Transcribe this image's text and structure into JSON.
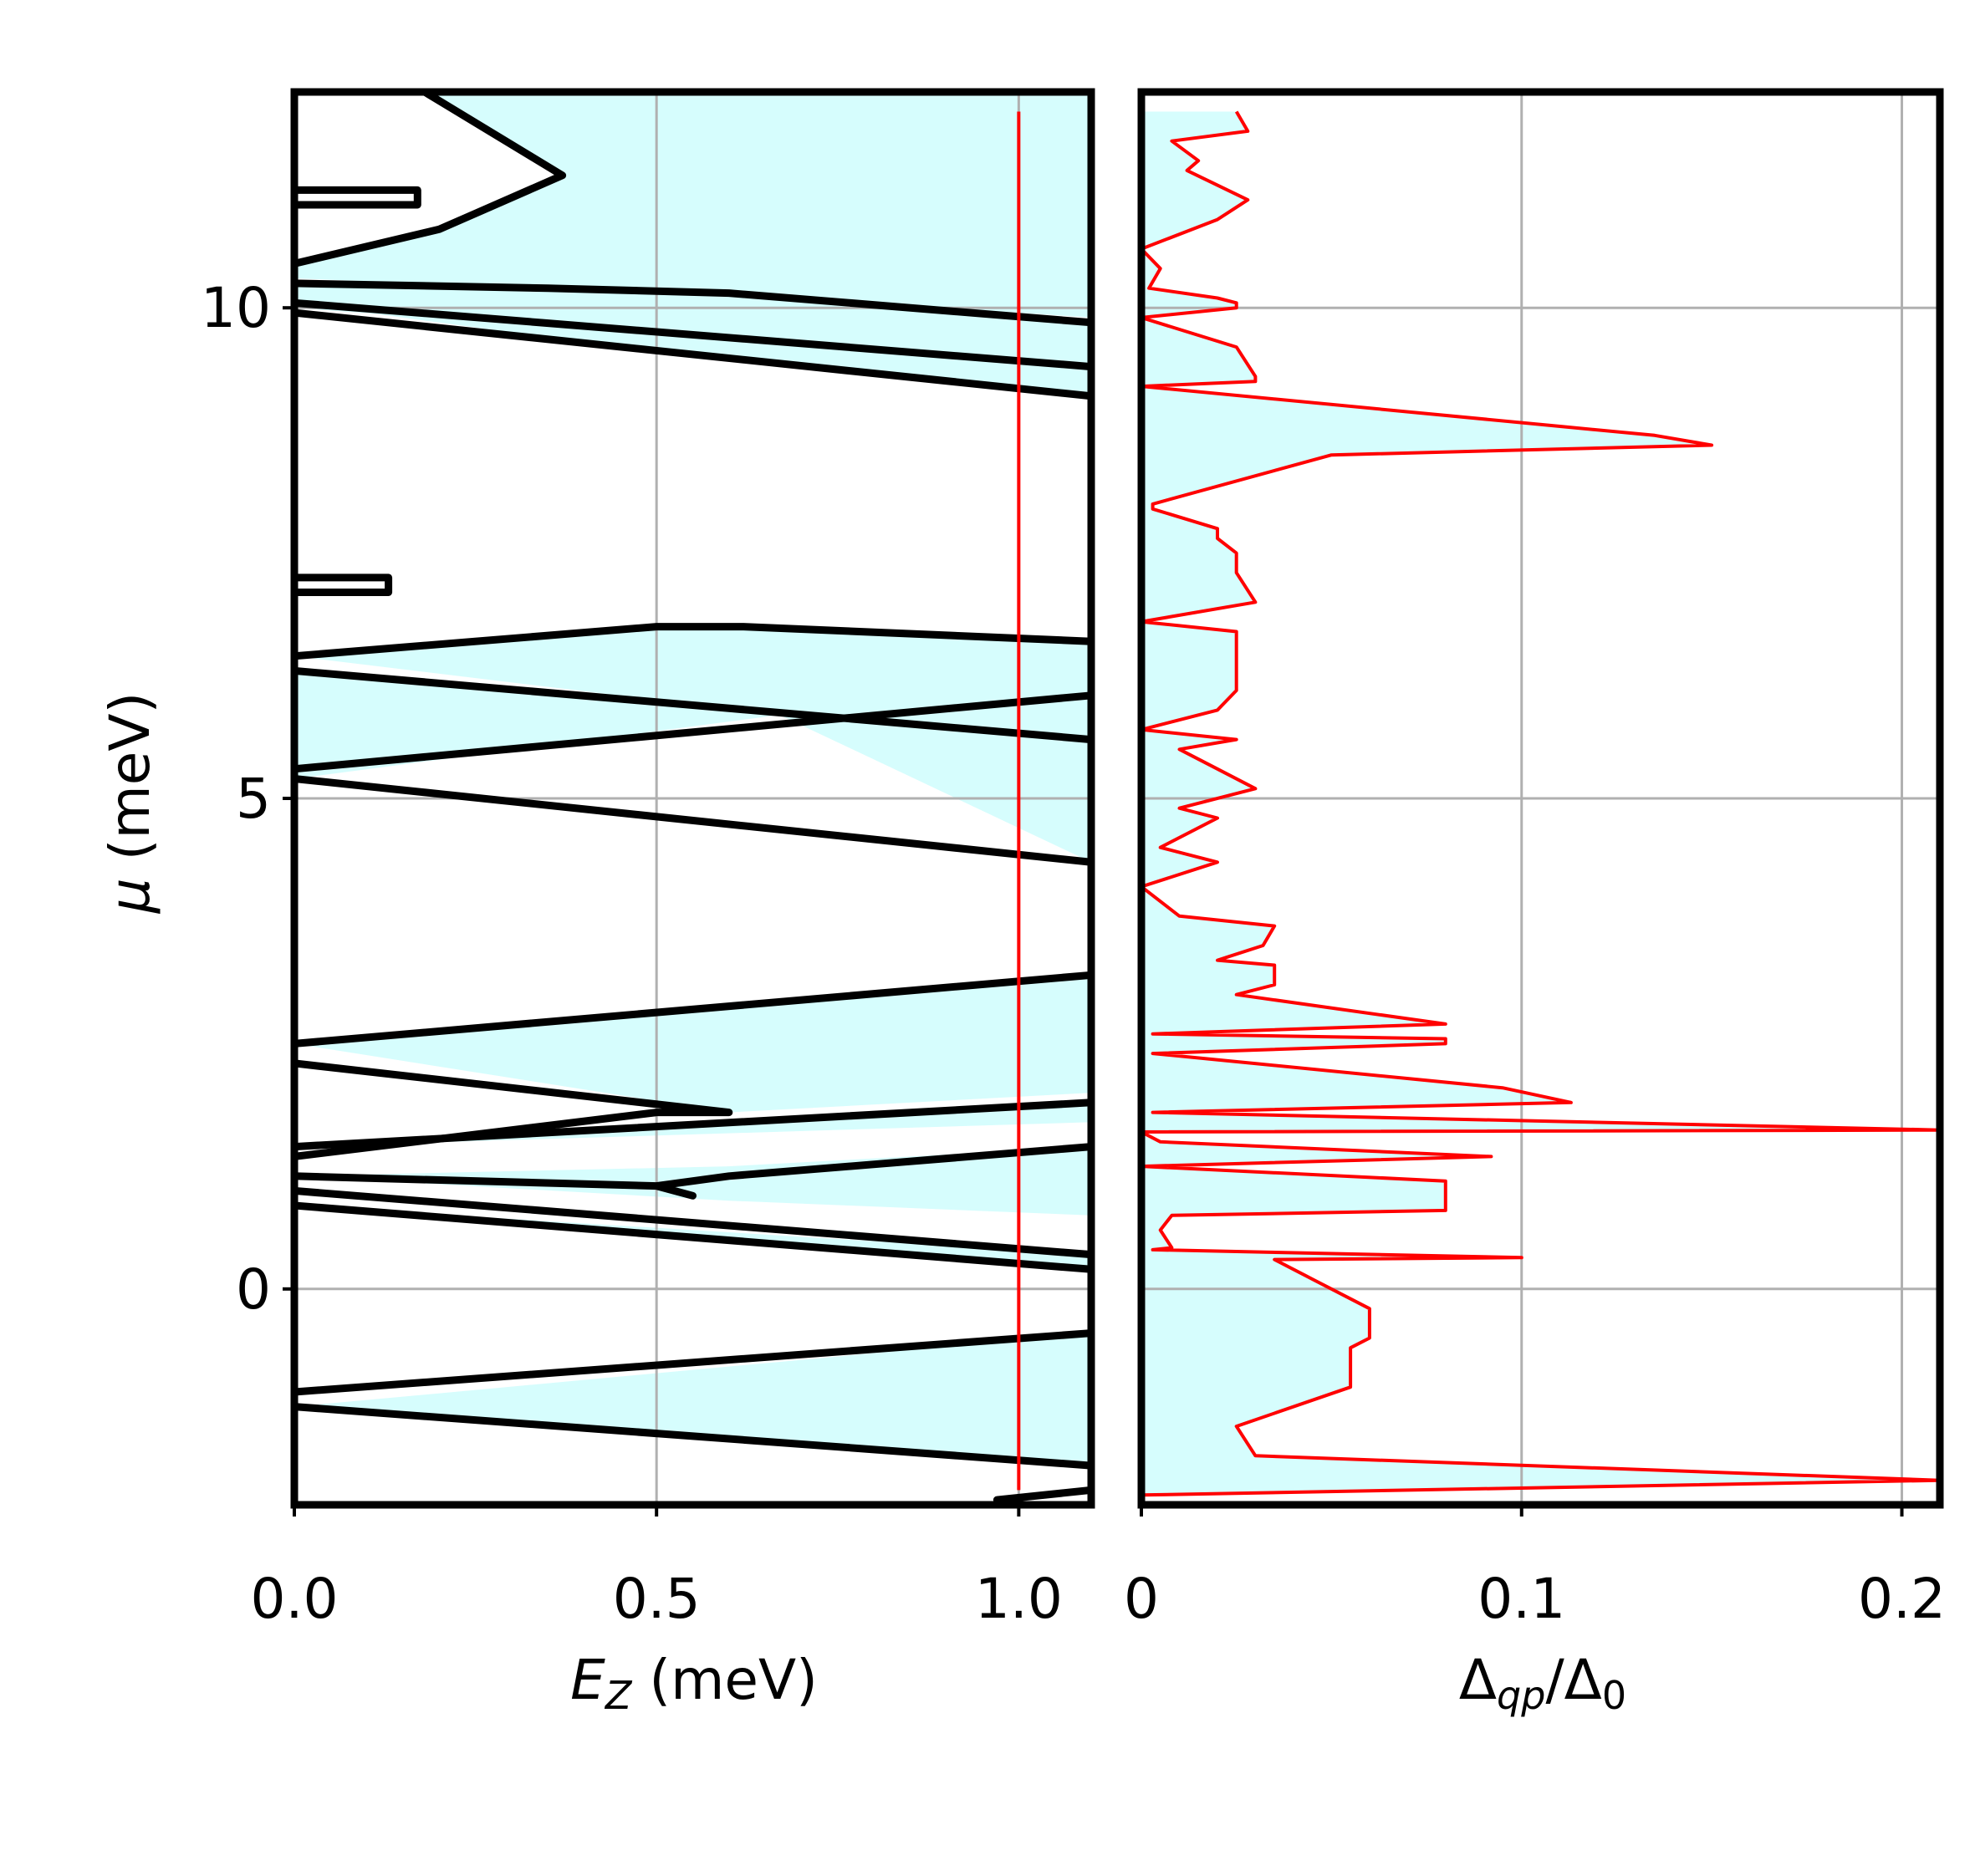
{
  "colors": {
    "topological_fill": "#d6fdfd",
    "phase_boundary": "#000000",
    "cut_line": "#ff0000",
    "gap_curve": "#ff0000",
    "grid": "#b0b0b0"
  },
  "chart_data": [
    {
      "type": "line",
      "panel": "left",
      "xlabel_main": "E",
      "xlabel_sub": "Z",
      "xlabel_rest": " (meV)",
      "ylabel_main": "μ",
      "ylabel_rest": " (meV)",
      "xlim": [
        0,
        1.1
      ],
      "ylim": [
        -2.2,
        12.2
      ],
      "xticks": [
        0.0,
        0.5,
        1.0
      ],
      "xtick_labels": [
        "0.0",
        "0.5",
        "1.0"
      ],
      "yticks": [
        0,
        5,
        10
      ],
      "ytick_labels": [
        "0",
        "5",
        "10"
      ],
      "grid": true,
      "cut_line_x": 1.0,
      "cut_line_y_range": [
        -2.05,
        12.0
      ],
      "topological_regions": [
        {
          "polygon": [
            [
              0.0,
              -1.2
            ],
            [
              1.1,
              -0.45
            ],
            [
              1.1,
              -1.8
            ]
          ]
        },
        {
          "polygon": [
            [
              0.0,
              0.85
            ],
            [
              1.1,
              0.35
            ],
            [
              1.1,
              0.2
            ]
          ]
        },
        {
          "polygon": [
            [
              0.0,
              1.15
            ],
            [
              0.6,
              0.9
            ],
            [
              1.1,
              0.75
            ],
            [
              1.1,
              1.45
            ],
            [
              0.6,
              1.25
            ]
          ]
        },
        {
          "polygon": [
            [
              0.0,
              1.45
            ],
            [
              1.1,
              1.9
            ],
            [
              1.1,
              1.7
            ]
          ]
        },
        {
          "polygon": [
            [
              0.0,
              2.5
            ],
            [
              1.1,
              3.2
            ],
            [
              1.1,
              2.0
            ],
            [
              0.6,
              1.8
            ]
          ]
        },
        {
          "polygon": [
            [
              0.0,
              5.2
            ],
            [
              0.67,
              5.85
            ],
            [
              0.0,
              6.3
            ]
          ]
        },
        {
          "polygon": [
            [
              0.67,
              5.85
            ],
            [
              1.1,
              6.05
            ],
            [
              1.1,
              4.35
            ]
          ]
        },
        {
          "polygon": [
            [
              0.0,
              6.45
            ],
            [
              0.5,
              6.75
            ],
            [
              0.62,
              6.75
            ],
            [
              1.1,
              6.6
            ],
            [
              1.1,
              5.6
            ],
            [
              0.67,
              5.85
            ]
          ]
        },
        {
          "polygon": [
            [
              0.0,
              10.25
            ],
            [
              0.35,
              10.2
            ],
            [
              0.6,
              10.15
            ],
            [
              1.1,
              9.85
            ],
            [
              1.1,
              9.4
            ],
            [
              0.0,
              10.0
            ]
          ]
        },
        {
          "polygon": [
            [
              0.0,
              10.05
            ],
            [
              0.5,
              9.55
            ],
            [
              1.1,
              9.1
            ],
            [
              1.1,
              9.45
            ]
          ]
        },
        {
          "polygon": [
            [
              0.0,
              10.45
            ],
            [
              0.2,
              10.8
            ],
            [
              0.37,
              11.35
            ],
            [
              0.18,
              12.2
            ],
            [
              1.1,
              12.2
            ],
            [
              1.1,
              9.9
            ],
            [
              0.6,
              10.15
            ],
            [
              0.35,
              10.2
            ],
            [
              0.0,
              10.3
            ]
          ]
        }
      ],
      "phase_boundaries": [
        {
          "points": [
            [
              0.0,
              -1.05
            ],
            [
              1.1,
              -0.45
            ]
          ]
        },
        {
          "points": [
            [
              0.0,
              -1.2
            ],
            [
              1.1,
              -1.8
            ]
          ]
        },
        {
          "points": [
            [
              0.0,
              0.85
            ],
            [
              1.1,
              0.2
            ]
          ]
        },
        {
          "points": [
            [
              0.0,
              1.0
            ],
            [
              1.1,
              0.35
            ]
          ]
        },
        {
          "points": [
            [
              0.0,
              1.15
            ],
            [
              0.5,
              1.05
            ],
            [
              0.55,
              0.95
            ],
            [
              0.5,
              1.05
            ],
            [
              0.6,
              1.15
            ],
            [
              1.1,
              1.45
            ]
          ]
        },
        {
          "points": [
            [
              0.0,
              1.45
            ],
            [
              1.1,
              1.9
            ]
          ]
        },
        {
          "points": [
            [
              0.0,
              1.35
            ],
            [
              0.5,
              1.8
            ],
            [
              0.6,
              1.8
            ],
            [
              0.0,
              2.3
            ]
          ]
        },
        {
          "points": [
            [
              0.0,
              2.5
            ],
            [
              1.1,
              3.2
            ]
          ]
        },
        {
          "points": [
            [
              0.0,
              5.2
            ],
            [
              1.1,
              4.35
            ]
          ]
        },
        {
          "points": [
            [
              0.0,
              5.3
            ],
            [
              1.1,
              6.05
            ]
          ]
        },
        {
          "points": [
            [
              0.0,
              6.3
            ],
            [
              1.1,
              5.6
            ]
          ]
        },
        {
          "points": [
            [
              0.0,
              6.45
            ],
            [
              0.5,
              6.75
            ],
            [
              0.62,
              6.75
            ],
            [
              1.1,
              6.6
            ]
          ]
        },
        {
          "points": [
            [
              0.0,
              7.25
            ],
            [
              0.13,
              7.25
            ],
            [
              0.13,
              7.1
            ],
            [
              0.0,
              7.1
            ]
          ]
        },
        {
          "points": [
            [
              0.0,
              9.95
            ],
            [
              1.1,
              9.1
            ]
          ]
        },
        {
          "points": [
            [
              0.0,
              10.05
            ],
            [
              1.1,
              9.4
            ]
          ]
        },
        {
          "points": [
            [
              0.0,
              10.25
            ],
            [
              0.35,
              10.2
            ],
            [
              0.6,
              10.15
            ],
            [
              1.1,
              9.85
            ]
          ]
        },
        {
          "points": [
            [
              0.0,
              10.45
            ],
            [
              0.2,
              10.8
            ],
            [
              0.37,
              11.35
            ],
            [
              0.18,
              12.2
            ]
          ]
        },
        {
          "points": [
            [
              0.0,
              11.2
            ],
            [
              0.17,
              11.2
            ],
            [
              0.17,
              11.05
            ],
            [
              0.0,
              11.05
            ]
          ]
        },
        {
          "points": [
            [
              0.97,
              -2.15
            ],
            [
              1.1,
              -2.05
            ]
          ]
        }
      ]
    },
    {
      "type": "line",
      "panel": "right",
      "xlabel_main": "Δ",
      "xlabel_sub": "qp",
      "xlabel_mid": "/Δ",
      "xlabel_sub2": "0",
      "xlim": [
        0,
        0.21
      ],
      "ylim": [
        -2.2,
        12.2
      ],
      "xticks": [
        0,
        0.1,
        0.2
      ],
      "xtick_labels": [
        "0",
        "0.1",
        "0.2"
      ],
      "grid": true,
      "gap_curve": {
        "mu": [
          -2.1,
          -1.95,
          -1.7,
          -1.4,
          -1.0,
          -0.6,
          -0.5,
          -0.2,
          0.1,
          0.3,
          0.32,
          0.4,
          0.42,
          0.6,
          0.75,
          0.8,
          0.95,
          1.1,
          1.25,
          1.35,
          1.5,
          1.6,
          1.62,
          1.8,
          1.9,
          2.05,
          2.4,
          2.5,
          2.55,
          2.6,
          2.7,
          3.0,
          3.1,
          3.3,
          3.35,
          3.5,
          3.7,
          3.8,
          4.1,
          4.35,
          4.5,
          4.8,
          4.9,
          5.1,
          5.3,
          5.5,
          5.6,
          5.7,
          5.9,
          6.1,
          6.3,
          6.5,
          6.7,
          6.8,
          7.0,
          7.3,
          7.5,
          7.65,
          7.75,
          7.95,
          8.0,
          8.5,
          8.6,
          8.7,
          9.2,
          9.25,
          9.3,
          9.6,
          9.9,
          10.0,
          10.05,
          10.1,
          10.2,
          10.4,
          10.6,
          10.9,
          11.1,
          11.4,
          11.5,
          11.7,
          11.8,
          12.0
        ],
        "gap": [
          0.0,
          0.21,
          0.03,
          0.025,
          0.055,
          0.055,
          0.06,
          0.06,
          0.045,
          0.035,
          0.1,
          0.003,
          0.008,
          0.005,
          0.008,
          0.08,
          0.08,
          0.08,
          0.0,
          0.092,
          0.005,
          0.0,
          0.21,
          0.003,
          0.113,
          0.095,
          0.003,
          0.08,
          0.08,
          0.003,
          0.08,
          0.025,
          0.035,
          0.035,
          0.02,
          0.032,
          0.035,
          0.01,
          0.0,
          0.02,
          0.005,
          0.02,
          0.01,
          0.03,
          0.02,
          0.01,
          0.025,
          0.0,
          0.02,
          0.025,
          0.025,
          0.025,
          0.025,
          0.0,
          0.03,
          0.025,
          0.025,
          0.02,
          0.02,
          0.003,
          0.003,
          0.05,
          0.15,
          0.135,
          0.0,
          0.03,
          0.03,
          0.025,
          0.0,
          0.025,
          0.025,
          0.02,
          0.002,
          0.005,
          0.0,
          0.02,
          0.028,
          0.012,
          0.015,
          0.008,
          0.028,
          0.025
        ]
      }
    }
  ]
}
